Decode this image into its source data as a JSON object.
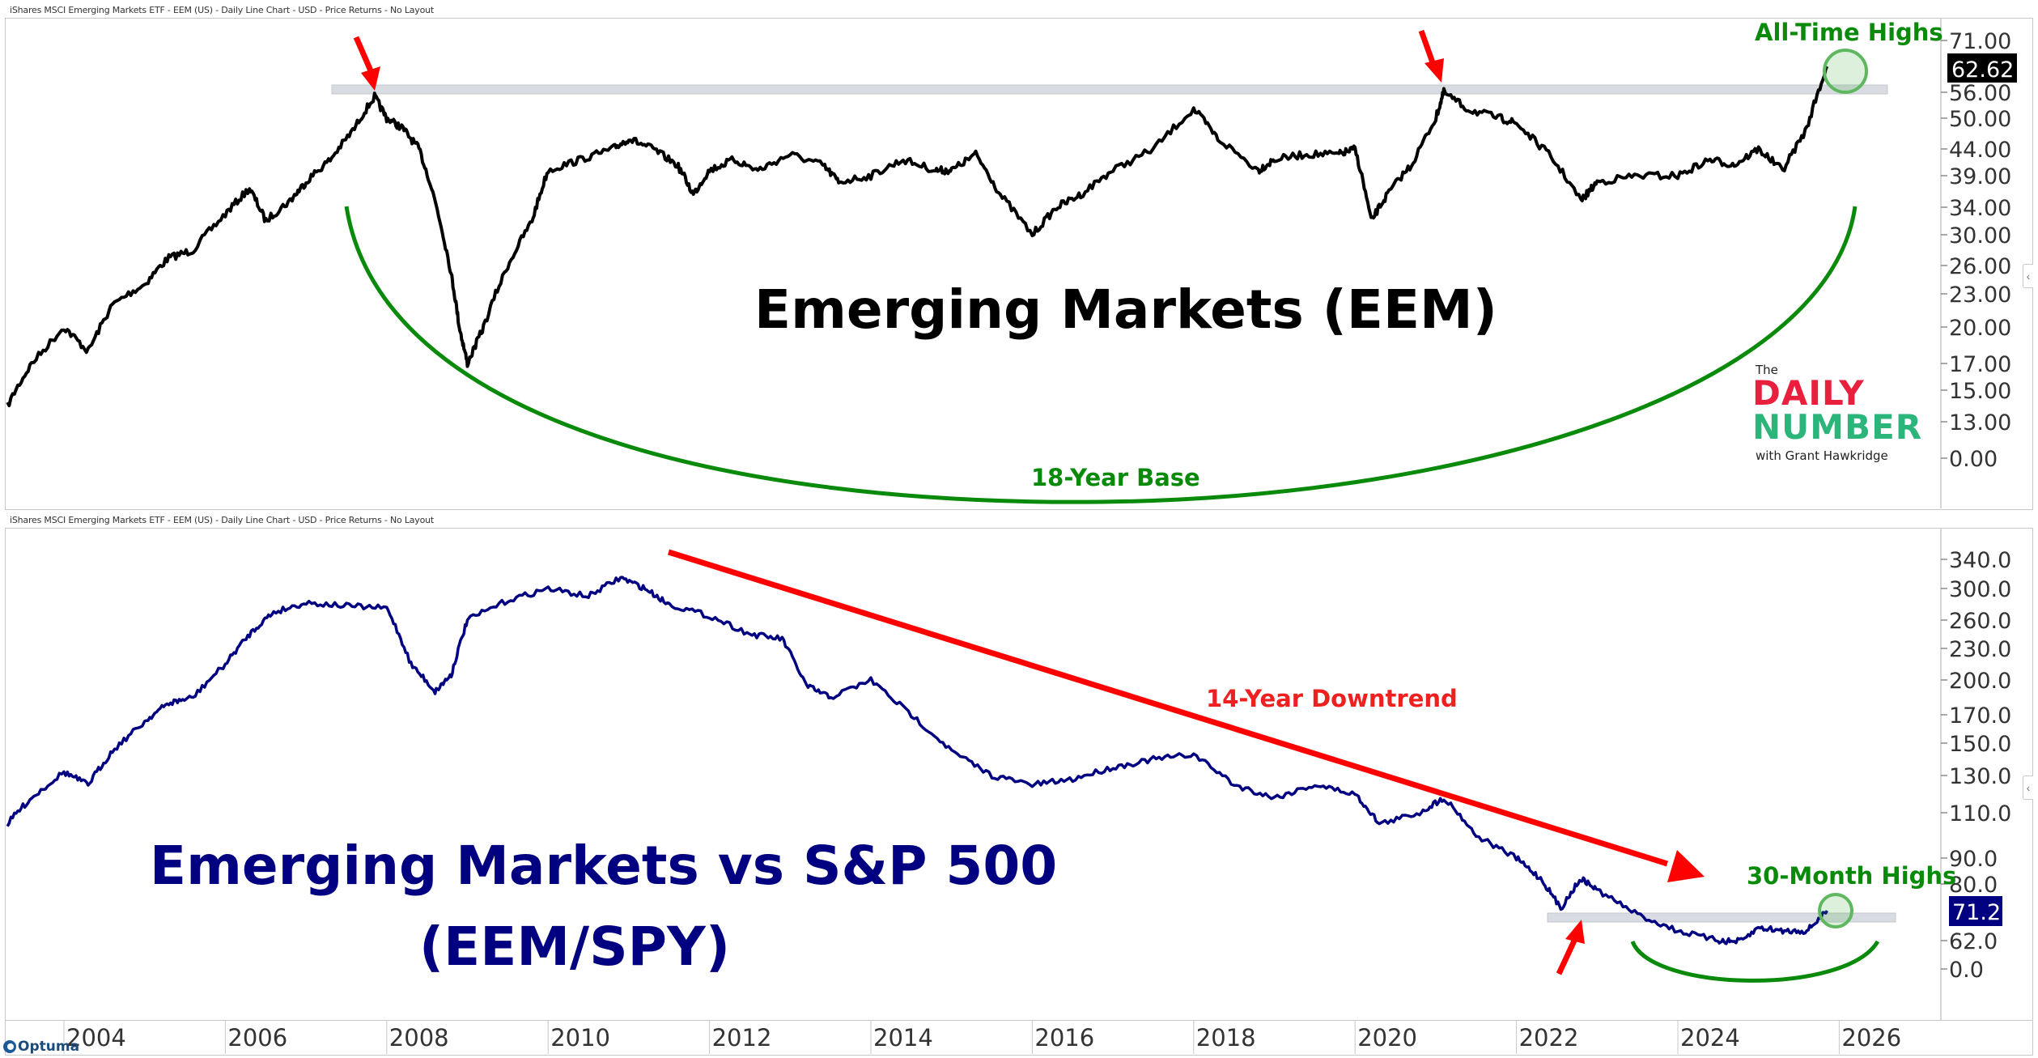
{
  "top_panel": {
    "header": "iShares MSCI Emerging Markets ETF - EEM (US) - Daily Line Chart - USD - Price Returns - No Layout",
    "title": "Emerging Markets (EEM)",
    "last_value_label": "62.62",
    "annotations": {
      "ath": "All-Time Highs",
      "base": "18-Year Base"
    }
  },
  "bottom_panel": {
    "header": "iShares MSCI Emerging Markets ETF - EEM (US) - Daily Line Chart - USD - Price Returns - No Layout",
    "title_line1": "Emerging Markets vs S&P 500",
    "title_line2": "(EEM/SPY)",
    "last_value_label": "71.2",
    "annotations": {
      "downtrend": "14-Year Downtrend",
      "highs": "30-Month Highs"
    }
  },
  "logo": {
    "the": "The",
    "daily": "DAILY",
    "number": "NUMBER",
    "with": "with Grant Hawkridge"
  },
  "optuma": "Optuma",
  "colors": {
    "eem_line": "#000000",
    "ratio_line": "#000080",
    "annotation_green": "#0a8a0a",
    "arrow_red": "#ff0000",
    "resistance_band": "#d8dce2",
    "last_value_bg_top": "#000000",
    "last_value_bg_bottom": "#000080",
    "logo_red": "#e8203e",
    "logo_green": "#2bb57a"
  },
  "chart_data": [
    {
      "type": "line",
      "title": "Emerging Markets (EEM)",
      "ylabel": "",
      "y_scale": "log-like (nonlinear ticks)",
      "y_ticks": [
        "71.00",
        "62.62",
        "56.00",
        "50.00",
        "44.00",
        "39.00",
        "34.00",
        "30.00",
        "26.00",
        "23.00",
        "20.00",
        "17.00",
        "15.00",
        "13.00",
        "0.00"
      ],
      "x_ticks": [
        "2004",
        "2006",
        "2008",
        "2010",
        "2012",
        "2014",
        "2016",
        "2018",
        "2020",
        "2022",
        "2024",
        "2026"
      ],
      "last_value": 62.62,
      "resistance_level": 56.0,
      "series": [
        {
          "name": "EEM",
          "x": [
            2003.3,
            2003.6,
            2004.0,
            2004.3,
            2004.6,
            2005.0,
            2005.3,
            2005.6,
            2006.0,
            2006.3,
            2006.5,
            2006.8,
            2007.0,
            2007.3,
            2007.6,
            2007.85,
            2008.0,
            2008.2,
            2008.4,
            2008.6,
            2008.8,
            2008.9,
            2009.0,
            2009.2,
            2009.5,
            2009.8,
            2010.0,
            2010.4,
            2010.8,
            2011.0,
            2011.3,
            2011.6,
            2011.8,
            2012.0,
            2012.3,
            2012.6,
            2013.0,
            2013.4,
            2013.6,
            2014.0,
            2014.4,
            2014.8,
            2015.0,
            2015.3,
            2015.6,
            2016.0,
            2016.3,
            2016.6,
            2017.0,
            2017.5,
            2018.0,
            2018.3,
            2018.8,
            2019.0,
            2019.4,
            2019.8,
            2020.0,
            2020.2,
            2020.4,
            2020.7,
            2021.0,
            2021.1,
            2021.4,
            2021.8,
            2022.0,
            2022.4,
            2022.8,
            2023.0,
            2023.5,
            2024.0,
            2024.4,
            2024.7,
            2025.0,
            2025.3,
            2025.6,
            2025.85
          ],
          "values": [
            14,
            17,
            20,
            18,
            22,
            24,
            27,
            28,
            33,
            37,
            32,
            35,
            38,
            42,
            48,
            55,
            50,
            48,
            44,
            35,
            25,
            20,
            17,
            20,
            26,
            32,
            40,
            42,
            44,
            46,
            44,
            41,
            36,
            40,
            42,
            40,
            43,
            41,
            38,
            39,
            42,
            40,
            40,
            43,
            36,
            30,
            34,
            36,
            40,
            44,
            52,
            46,
            40,
            42,
            43,
            43,
            44,
            32,
            36,
            41,
            50,
            56,
            52,
            50,
            49,
            43,
            35,
            38,
            39,
            39,
            42,
            41,
            44,
            40,
            48,
            62.62
          ]
        }
      ]
    },
    {
      "type": "line",
      "title": "Emerging Markets vs S&P 500 (EEM/SPY)",
      "ylabel": "",
      "y_scale": "log-like (nonlinear ticks)",
      "y_ticks": [
        "340.0",
        "300.0",
        "260.0",
        "230.0",
        "200.0",
        "170.0",
        "150.0",
        "130.0",
        "110.0",
        "90.0",
        "80.0",
        "71.2",
        "62.0",
        "0.0"
      ],
      "x_ticks": [
        "2004",
        "2006",
        "2008",
        "2010",
        "2012",
        "2014",
        "2016",
        "2018",
        "2020",
        "2022",
        "2024",
        "2026"
      ],
      "last_value": 71.2,
      "resistance_level": 71.0,
      "series": [
        {
          "name": "EEM/SPY",
          "x": [
            2003.3,
            2003.6,
            2004.0,
            2004.3,
            2004.6,
            2005.0,
            2005.3,
            2005.6,
            2006.0,
            2006.3,
            2006.6,
            2007.0,
            2007.5,
            2008.0,
            2008.3,
            2008.6,
            2008.8,
            2009.0,
            2009.5,
            2010.0,
            2010.5,
            2010.9,
            2011.2,
            2011.5,
            2012.0,
            2012.5,
            2012.9,
            2013.2,
            2013.5,
            2014.0,
            2014.5,
            2015.0,
            2015.5,
            2016.0,
            2016.5,
            2017.0,
            2017.5,
            2018.0,
            2018.5,
            2019.0,
            2019.5,
            2020.0,
            2020.3,
            2020.8,
            2021.1,
            2021.5,
            2022.0,
            2022.3,
            2022.55,
            2022.8,
            2023.0,
            2023.5,
            2024.0,
            2024.5,
            2024.7,
            2025.0,
            2025.3,
            2025.6,
            2025.85
          ],
          "values": [
            105,
            118,
            132,
            125,
            145,
            165,
            180,
            185,
            215,
            245,
            270,
            282,
            278,
            275,
            215,
            190,
            205,
            260,
            285,
            300,
            290,
            315,
            300,
            280,
            265,
            245,
            240,
            195,
            185,
            200,
            170,
            145,
            130,
            125,
            128,
            135,
            140,
            143,
            125,
            118,
            125,
            120,
            105,
            110,
            118,
            100,
            90,
            82,
            72,
            82,
            78,
            70,
            65,
            62,
            60,
            66,
            65,
            65,
            71.2
          ]
        }
      ]
    }
  ]
}
